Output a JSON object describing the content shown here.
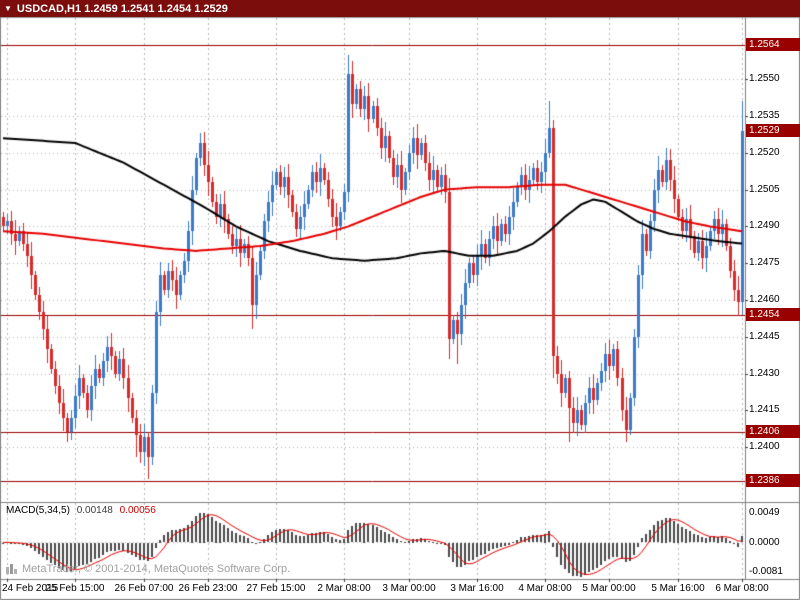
{
  "window": {
    "title_bar": {
      "icon": "▼",
      "title": "USDCAD,H1 1.2459 1.2541 1.2454 1.2529"
    }
  },
  "colors": {
    "title_bar": "#7c0d0d",
    "bull": "#3c7ac8",
    "bear": "#d62b2b",
    "ma_red": "#e60000",
    "ma_black": "#000000",
    "level_line": "#990000",
    "tag_bg": "#990000",
    "current_tag_bg": "#990000",
    "grid": "#b8b8b8",
    "macd_hist": "#4a4a4a",
    "macd_signal": "#e60000",
    "axis_text": "#000000",
    "separator": "#808080",
    "watermark": "#a0a0a0"
  },
  "macd": {
    "label": "MACD(5,34,5)",
    "value_main": "0.00148",
    "value_signal": "0.00056",
    "axis_labels": [
      "0.0049",
      "0.0000",
      "-0.0081"
    ]
  },
  "watermark": {
    "text": "MetaTrader, © 2001-2014, MetaQuotes Software Corp."
  },
  "chart_data": {
    "type": "candlestick",
    "symbol": "USDCAD",
    "timeframe": "H1",
    "current_bar_ohlc": {
      "open": 1.2459,
      "high": 1.2541,
      "low": 1.2454,
      "close": 1.2529
    },
    "ylim": [
      1.2378,
      1.2575
    ],
    "price_ticks": [
      1.255,
      1.2535,
      1.252,
      1.2505,
      1.249,
      1.2475,
      1.246,
      1.2445,
      1.243,
      1.2415,
      1.24
    ],
    "levels": [
      1.2564,
      1.2454,
      1.2406,
      1.2386
    ],
    "current_price": 1.2529,
    "time_labels": [
      {
        "text": "24 Feb 2015",
        "bar": 1
      },
      {
        "text": "25 Feb 15:00",
        "bar": 18
      },
      {
        "text": "26 Feb 07:00",
        "bar": 35
      },
      {
        "text": "26 Feb 23:00",
        "bar": 51
      },
      {
        "text": "27 Feb 15:00",
        "bar": 68
      },
      {
        "text": "2 Mar 08:00",
        "bar": 85
      },
      {
        "text": "3 Mar 00:00",
        "bar": 101
      },
      {
        "text": "3 Mar 16:00",
        "bar": 118
      },
      {
        "text": "4 Mar 08:00",
        "bar": 135
      },
      {
        "text": "5 Mar 00:00",
        "bar": 151
      },
      {
        "text": "5 Mar 16:00",
        "bar": 168
      },
      {
        "text": "6 Mar 08:00",
        "bar": 184
      }
    ],
    "closes": [
      1.249,
      1.2492,
      1.2487,
      1.2484,
      1.2488,
      1.2483,
      1.2478,
      1.247,
      1.2462,
      1.2455,
      1.2448,
      1.244,
      1.2432,
      1.2425,
      1.2418,
      1.2412,
      1.2406,
      1.2412,
      1.2421,
      1.2428,
      1.2422,
      1.2415,
      1.2425,
      1.2432,
      1.2428,
      1.2435,
      1.2441,
      1.2437,
      1.243,
      1.2436,
      1.2428,
      1.242,
      1.2412,
      1.2405,
      1.2398,
      1.2404,
      1.2396,
      1.2422,
      1.2455,
      1.247,
      1.2464,
      1.2472,
      1.2468,
      1.2462,
      1.247,
      1.2476,
      1.2488,
      1.2505,
      1.2518,
      1.2524,
      1.2515,
      1.2508,
      1.25,
      1.2494,
      1.2499,
      1.2493,
      1.2487,
      1.2482,
      1.2485,
      1.2479,
      1.2483,
      1.2477,
      1.2458,
      1.247,
      1.248,
      1.2492,
      1.25,
      1.2507,
      1.2512,
      1.2506,
      1.251,
      1.2503,
      1.2496,
      1.2489,
      1.2494,
      1.2499,
      1.2505,
      1.2512,
      1.2508,
      1.2514,
      1.2509,
      1.2501,
      1.2494,
      1.249,
      1.2496,
      1.2504,
      1.2552,
      1.254,
      1.2546,
      1.2538,
      1.2543,
      1.2534,
      1.2539,
      1.253,
      1.2522,
      1.2527,
      1.2518,
      1.251,
      1.2515,
      1.2505,
      1.2512,
      1.252,
      1.2526,
      1.2519,
      1.2524,
      1.2516,
      1.2509,
      1.2513,
      1.2506,
      1.2511,
      1.2504,
      1.2444,
      1.2452,
      1.2446,
      1.2458,
      1.2467,
      1.2475,
      1.247,
      1.2478,
      1.2483,
      1.2477,
      1.2485,
      1.249,
      1.2484,
      1.2491,
      1.2487,
      1.2494,
      1.25,
      1.2506,
      1.2511,
      1.2505,
      1.2509,
      1.2514,
      1.2508,
      1.2512,
      1.252,
      1.253,
      1.2437,
      1.243,
      1.2422,
      1.2428,
      1.2416,
      1.241,
      1.2415,
      1.2409,
      1.2418,
      1.2424,
      1.2419,
      1.2426,
      1.2431,
      1.2438,
      1.2433,
      1.244,
      1.2428,
      1.2415,
      1.2407,
      1.242,
      1.2445,
      1.247,
      1.2487,
      1.248,
      1.2492,
      1.2505,
      1.2513,
      1.2508,
      1.2517,
      1.2509,
      1.2501,
      1.2494,
      1.2488,
      1.2493,
      1.2486,
      1.2479,
      1.2484,
      1.2477,
      1.2482,
      1.2488,
      1.2493,
      1.2487,
      1.2491,
      1.2482,
      1.2472,
      1.2464,
      1.2459,
      1.2529
    ],
    "wick_overrides": {
      "16": [
        null,
        1.2402
      ],
      "33": [
        null,
        1.2396
      ],
      "36": [
        null,
        1.2387
      ],
      "49": [
        1.2528,
        null
      ],
      "62": [
        null,
        1.2448
      ],
      "86": [
        1.256,
        1.25
      ],
      "111": [
        null,
        1.2436
      ],
      "113": [
        null,
        1.2434
      ],
      "136": [
        1.2541,
        null
      ],
      "137": [
        null,
        1.2428
      ],
      "141": [
        null,
        1.2402
      ],
      "155": [
        null,
        1.2402
      ],
      "165": [
        1.2522,
        null
      ],
      "184": [
        1.2541,
        1.2454
      ]
    },
    "ma_black_points": [
      [
        0,
        1.2526
      ],
      [
        18,
        1.2524
      ],
      [
        30,
        1.2516
      ],
      [
        40,
        1.2507
      ],
      [
        50,
        1.2498
      ],
      [
        58,
        1.249
      ],
      [
        66,
        1.2484
      ],
      [
        74,
        1.248
      ],
      [
        82,
        1.2477
      ],
      [
        90,
        1.2476
      ],
      [
        98,
        1.2477
      ],
      [
        104,
        1.2479
      ],
      [
        110,
        1.248
      ],
      [
        116,
        1.2478
      ],
      [
        122,
        1.2478
      ],
      [
        128,
        1.248
      ],
      [
        132,
        1.2483
      ],
      [
        136,
        1.2488
      ],
      [
        140,
        1.2494
      ],
      [
        144,
        1.2499
      ],
      [
        147,
        1.2501
      ],
      [
        150,
        1.25
      ],
      [
        154,
        1.2496
      ],
      [
        158,
        1.2492
      ],
      [
        162,
        1.2489
      ],
      [
        166,
        1.2487
      ],
      [
        170,
        1.2486
      ],
      [
        174,
        1.2485
      ],
      [
        178,
        1.2484
      ],
      [
        184,
        1.2483
      ]
    ],
    "ma_red_points": [
      [
        0,
        1.2488
      ],
      [
        10,
        1.2487
      ],
      [
        20,
        1.2485
      ],
      [
        30,
        1.2483
      ],
      [
        40,
        1.2481
      ],
      [
        48,
        1.248
      ],
      [
        56,
        1.2481
      ],
      [
        64,
        1.2482
      ],
      [
        72,
        1.2484
      ],
      [
        80,
        1.2487
      ],
      [
        86,
        1.249
      ],
      [
        92,
        1.2494
      ],
      [
        98,
        1.2498
      ],
      [
        104,
        1.2502
      ],
      [
        110,
        1.2505
      ],
      [
        118,
        1.2506
      ],
      [
        126,
        1.2506
      ],
      [
        134,
        1.2507
      ],
      [
        140,
        1.2507
      ],
      [
        146,
        1.2504
      ],
      [
        152,
        1.2501
      ],
      [
        158,
        1.2498
      ],
      [
        164,
        1.2495
      ],
      [
        170,
        1.2492
      ],
      [
        176,
        1.249
      ],
      [
        184,
        1.2488
      ]
    ],
    "indicators": {
      "macd": {
        "fast": 5,
        "slow": 34,
        "signal": 5
      }
    }
  }
}
